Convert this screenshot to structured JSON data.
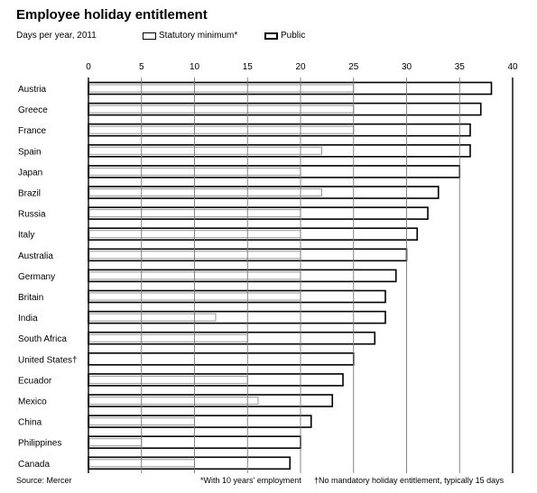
{
  "title": "Employee holiday entitlement",
  "subtitle": "Days per year, 2011",
  "legend": {
    "statutory_label": "Statutory minimum*",
    "public_label": "Public"
  },
  "source": "Source: Mercer",
  "footnote_star": "*With 10 years' employment",
  "footnote_dagger": "†No mandatory holiday entitlement, typically 15 days",
  "chart_data": {
    "type": "bar",
    "orientation": "horizontal",
    "title": "Employee holiday entitlement",
    "subtitle": "Days per year, 2011",
    "xlim": [
      0,
      40
    ],
    "xticks": [
      0,
      5,
      10,
      15,
      20,
      25,
      30,
      35,
      40
    ],
    "grid": true,
    "legend_position": "top",
    "categories": [
      "Austria",
      "Greece",
      "France",
      "Spain",
      "Japan",
      "Brazil",
      "Russia",
      "Italy",
      "Australia",
      "Germany",
      "Britain",
      "India",
      "South Africa",
      "United States†",
      "Ecuador",
      "Mexico",
      "China",
      "Philippines",
      "Canada"
    ],
    "series": [
      {
        "name": "Statutory minimum*",
        "values": [
          25,
          25,
          25,
          22,
          20,
          22,
          20,
          20,
          20,
          20,
          20,
          12,
          15,
          0,
          15,
          16,
          10,
          5,
          10
        ]
      },
      {
        "name": "Public",
        "values": [
          38,
          37,
          36,
          36,
          35,
          33,
          32,
          31,
          30,
          29,
          28,
          28,
          27,
          25,
          24,
          23,
          21,
          20,
          19
        ]
      }
    ]
  }
}
